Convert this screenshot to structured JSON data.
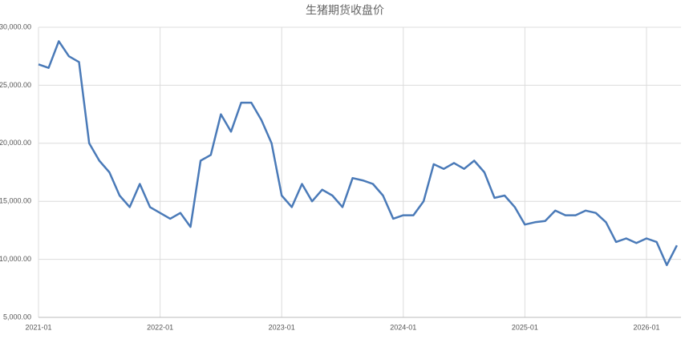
{
  "chart_data": {
    "type": "line",
    "title": "生猪期货收盘价",
    "categories": [
      "2021-01",
      null,
      null,
      null,
      null,
      null,
      null,
      null,
      null,
      null,
      null,
      null,
      "2022-01",
      null,
      null,
      null,
      null,
      null,
      null,
      null,
      null,
      null,
      null,
      null,
      "2023-01",
      null,
      null,
      null,
      null,
      null,
      null,
      null,
      null,
      null,
      null,
      null,
      "2024-01",
      null,
      null,
      null,
      null,
      null,
      null,
      null,
      null,
      null,
      null,
      null,
      "2025-01",
      null,
      null,
      null,
      null,
      null,
      null,
      null,
      null,
      null,
      null,
      null,
      "2026-01",
      null,
      null,
      null
    ],
    "series": [
      {
        "name": "生猪期货收盘价",
        "color": "#4a7ab8",
        "values": [
          26800,
          26500,
          28800,
          27500,
          27000,
          20000,
          18500,
          17500,
          15500,
          14500,
          16500,
          14500,
          14000,
          13500,
          14000,
          12800,
          18500,
          19000,
          22500,
          21000,
          23500,
          23500,
          22000,
          20000,
          15500,
          14500,
          16500,
          15000,
          16000,
          15500,
          14500,
          17000,
          16800,
          16500,
          15500,
          13500,
          13800,
          13800,
          15000,
          18200,
          17800,
          18300,
          17800,
          18500,
          17500,
          15300,
          15500,
          14500,
          13000,
          13200,
          13300,
          14200,
          13800,
          13800,
          14200,
          14000,
          13200,
          11500,
          11800,
          11400,
          11800,
          11500,
          9500,
          11200
        ]
      }
    ],
    "ylim": [
      5000,
      30000
    ],
    "yticks": [
      {
        "value": 5000,
        "label": "5,000.00"
      },
      {
        "value": 10000,
        "label": "10,000.00"
      },
      {
        "value": 15000,
        "label": "15,000.00"
      },
      {
        "value": 20000,
        "label": "20,000.00"
      },
      {
        "value": 25000,
        "label": "25,000.00"
      },
      {
        "value": 30000,
        "label": "30,000.00"
      }
    ],
    "grid": true
  }
}
